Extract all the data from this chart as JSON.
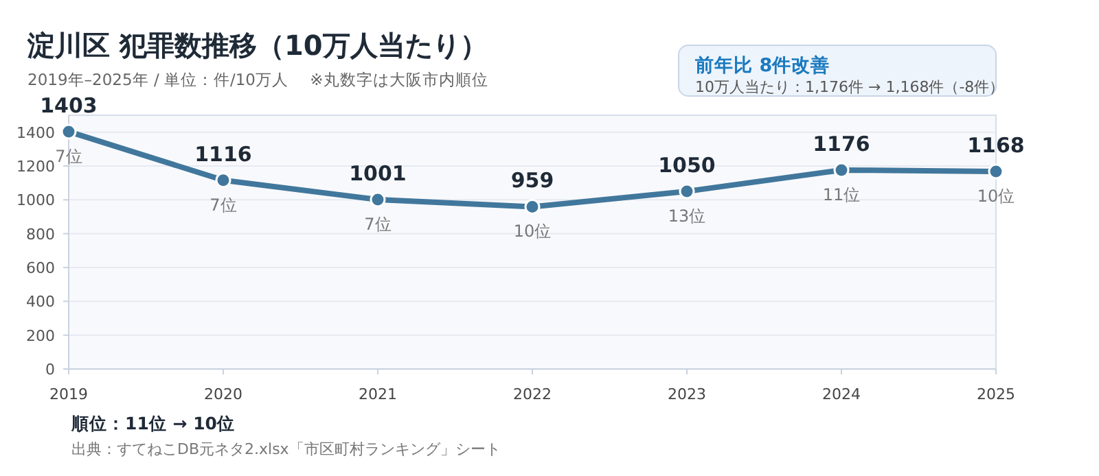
{
  "chart_data": {
    "type": "line",
    "title": "淀川区  犯罪数推移（10万人当たり）",
    "subtitle": "2019年–2025年 / 単位：件/10万人　 ※丸数字は大阪市内順位",
    "x": [
      2019,
      2020,
      2021,
      2022,
      2023,
      2024,
      2025
    ],
    "series": [
      {
        "color": "#41779c",
        "values": [
          1403,
          1116,
          1001,
          959,
          1050,
          1176,
          1168
        ]
      }
    ],
    "xlim": [
      2019,
      2025
    ],
    "xticks": [
      2019,
      2020,
      2021,
      2022,
      2023,
      2024,
      2025
    ],
    "ylim": [
      0,
      1500
    ],
    "yticks": [
      0,
      200,
      400,
      600,
      800,
      1000,
      1200,
      1400
    ],
    "grid": "y",
    "marker": "circle",
    "data_labels": true,
    "annotations": [
      "前年比  8件改善",
      "10万人当たり：1,176件 → 1,168件（-8件）",
      "順位：11位 → 10位",
      "出典：すてねこDB元ネタ2.xlsx「市区町村ランキング」シート",
      {
        "text": "7位",
        "x": 2019,
        "y": 1403
      },
      {
        "text": "7位",
        "x": 2020,
        "y": 1116
      },
      {
        "text": "7位",
        "x": 2021,
        "y": 1001
      },
      {
        "text": "10位",
        "x": 2022,
        "y": 959
      },
      {
        "text": "13位",
        "x": 2023,
        "y": 1050
      },
      {
        "text": "11位",
        "x": 2024,
        "y": 1176
      },
      {
        "text": "10位",
        "x": 2025,
        "y": 1168
      }
    ]
  }
}
